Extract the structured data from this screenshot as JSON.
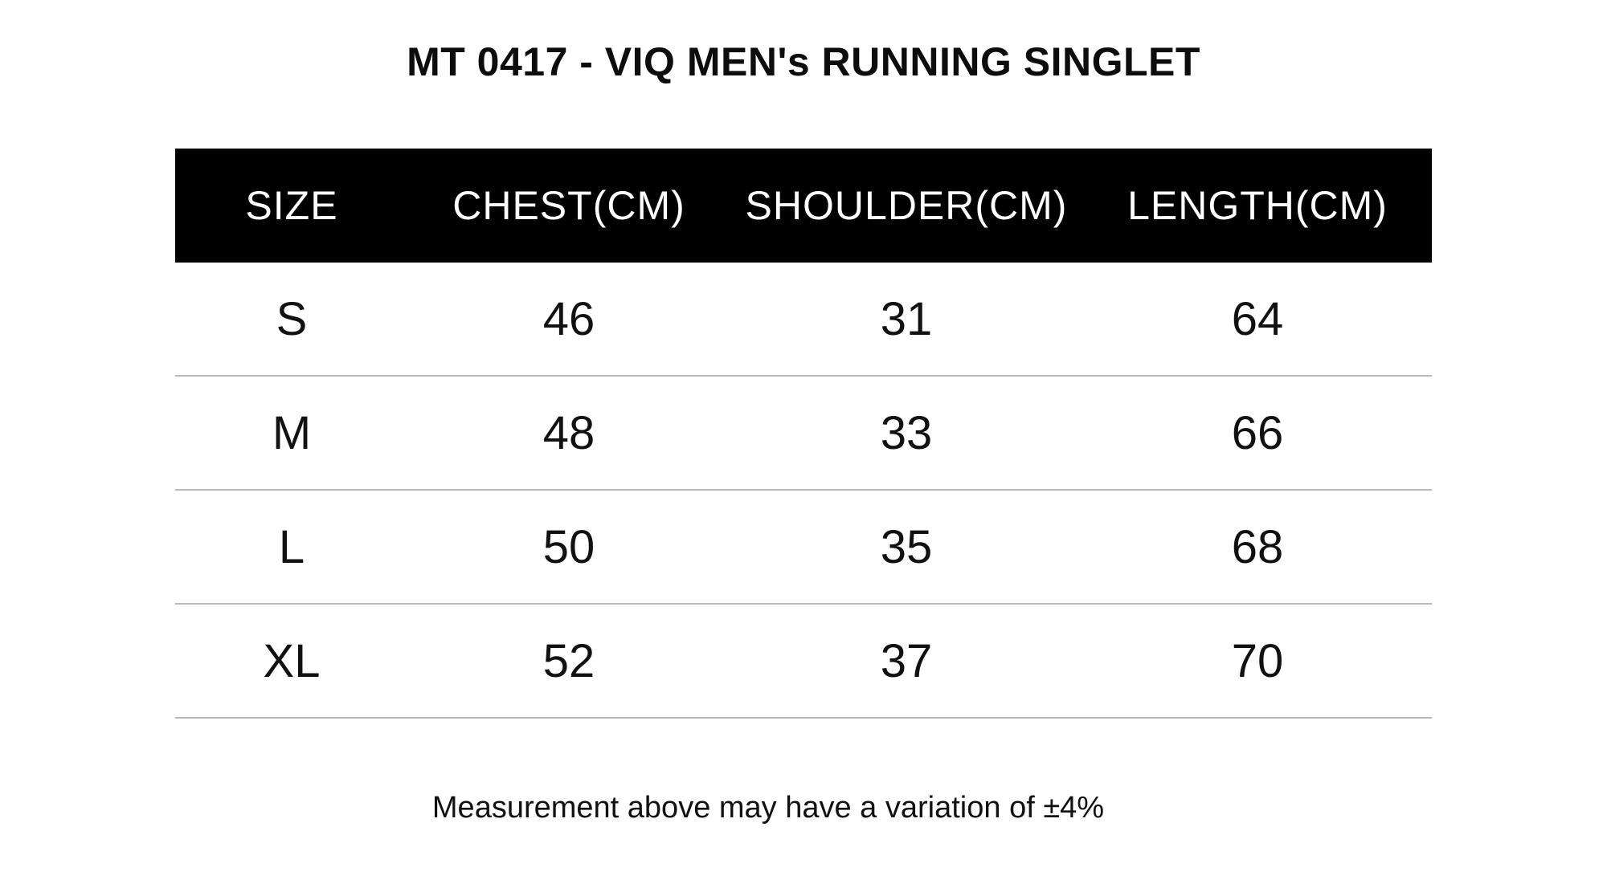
{
  "title": "MT 0417 - VIQ MEN's RUNNING SINGLET",
  "table": {
    "headers": [
      "SIZE",
      "CHEST(CM)",
      "SHOULDER(CM)",
      "LENGTH(CM)"
    ],
    "rows": [
      [
        "S",
        "46",
        "31",
        "64"
      ],
      [
        "M",
        "48",
        "33",
        "66"
      ],
      [
        "L",
        "50",
        "35",
        "68"
      ],
      [
        "XL",
        "52",
        "37",
        "70"
      ]
    ]
  },
  "footnote": "Measurement above may have a variation of ±4%",
  "colors": {
    "header_background": "#000000",
    "header_text": "#ffffff",
    "row_divider": "#b9b9b9"
  }
}
